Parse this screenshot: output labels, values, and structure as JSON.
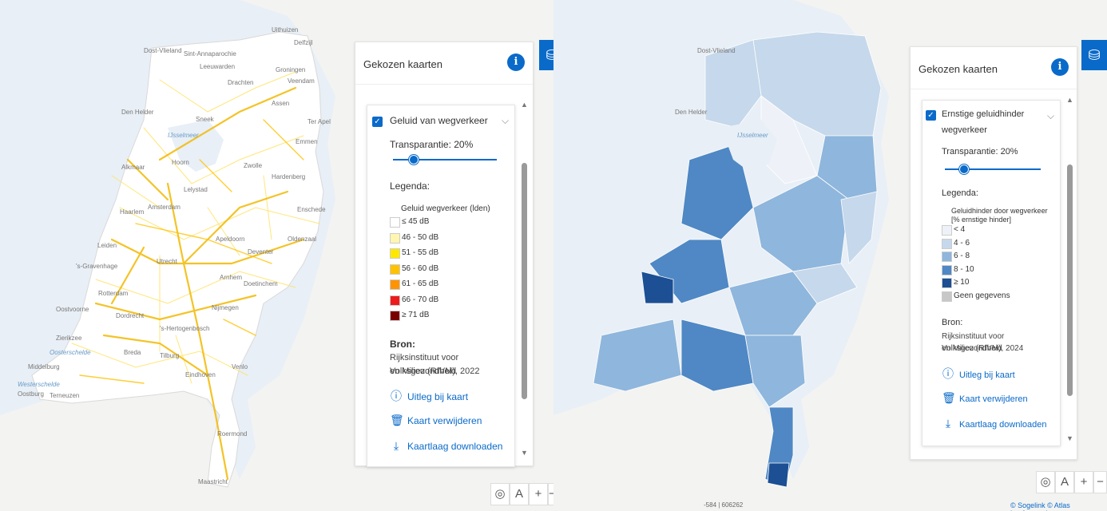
{
  "left": {
    "panel": {
      "title": "Gekozen kaarten",
      "info_icon": "info-icon",
      "layer": {
        "name": "Geluid van wegverkeer",
        "checked": true,
        "transparency_label": "Transparantie: 20%",
        "transparency": 0.2,
        "legend_label": "Legenda:",
        "legend_title": "Geluid wegverkeer (lden)",
        "legend_items": [
          {
            "label": "≤ 45 dB",
            "color": "#ffffff"
          },
          {
            "label": "46 - 50 dB",
            "color": "#fff6b0"
          },
          {
            "label": "51 - 55 dB",
            "color": "#ffe800"
          },
          {
            "label": "56 - 60 dB",
            "color": "#ffc200"
          },
          {
            "label": "61 - 65 dB",
            "color": "#ff9300"
          },
          {
            "label": "66 - 70 dB",
            "color": "#ee1b1b"
          },
          {
            "label": "≥ 71 dB",
            "color": "#7a0000"
          }
        ],
        "bron_label": "Bron:",
        "bron_line1": "Rijksinstituut voor Volksgezondheid",
        "bron_line2": "en Milieu (RIVM), 2022",
        "action_explain": "Uitleg bij kaart",
        "action_remove": "Kaart verwijderen",
        "action_download": "Kaartlaag downloaden"
      }
    },
    "map_labels": [
      "Uithuizen",
      "Delfzijl",
      "Dost-Vlieland",
      "Sint-Annaparochie",
      "Leeuwarden",
      "Drachten",
      "Groningen",
      "Veendam",
      "Den Helder",
      "Sneek",
      "Assen",
      "Emmen",
      "Ter Apel",
      "IJsselmeer",
      "Alkmaar",
      "Hoorn",
      "Zwolle",
      "Hardenberg",
      "Lelystad",
      "Haarlem",
      "Amsterdam",
      "Enschede",
      "Oldenzaal",
      "Apeldoorn",
      "Deventer",
      "Leiden",
      "'s-Gravenhage",
      "Utrecht",
      "Arnhem",
      "Rotterdam",
      "Doetinchem",
      "Oostvoorne",
      "Dordrecht",
      "Nijmegen",
      "Zierikzee",
      "'s-Hertogenbosch",
      "Oosterschelde",
      "Breda",
      "Tilburg",
      "Middelburg",
      "Eindhoven",
      "Venlo",
      "Westerschelde",
      "Oostburg",
      "Terneuzen",
      "Roermond",
      "Maastricht"
    ]
  },
  "right": {
    "panel": {
      "title": "Gekozen kaarten",
      "info_icon": "info-icon",
      "layer": {
        "name_line1": "Ernstige geluidhinder",
        "name_line2": "wegverkeer",
        "checked": true,
        "transparency_label": "Transparantie: 20%",
        "transparency": 0.2,
        "legend_label": "Legenda:",
        "legend_title_line1": "Geluidhinder door wegverkeer",
        "legend_title_line2": "[% ernstige hinder]",
        "legend_items": [
          {
            "label": "< 4",
            "color": "#eef2f8"
          },
          {
            "label": "4 - 6",
            "color": "#c6d8eb"
          },
          {
            "label": "6 - 8",
            "color": "#8fb6dc"
          },
          {
            "label": "8 - 10",
            "color": "#4f88c4"
          },
          {
            "label": "≥ 10",
            "color": "#1c4f93"
          },
          {
            "label": "Geen gegevens",
            "color": "#c7c7c7"
          }
        ],
        "bron_label": "Bron:",
        "bron_line1": "Rijksinstituut voor Volksgezondheid",
        "bron_line2": "en Milieu (RIVM), 2024",
        "action_explain": "Uitleg bij kaart",
        "action_remove": "Kaart verwijderen",
        "action_download": "Kaartlaag downloaden"
      }
    },
    "coords": "-584 | 606262",
    "credit": "© Sogelink © Atlas Leefomgeving",
    "map_labels": [
      "Dost-Vlieland",
      "Den Helder",
      "IJsselmeer"
    ]
  },
  "colors": {
    "accent": "#0a6ac9",
    "sea": "#e7eef6",
    "land": "#f4f4f2",
    "road_major": "#f2b800",
    "road_minor": "#ffe36a"
  },
  "icons": {
    "tool": "layers-icon",
    "location": "locate-icon",
    "north": "north-arrow-icon",
    "zoom_in": "zoom-in-icon",
    "zoom_out": "zoom-out-icon"
  },
  "controls": {
    "zoom_in_label": "+",
    "zoom_out_label": "−"
  }
}
